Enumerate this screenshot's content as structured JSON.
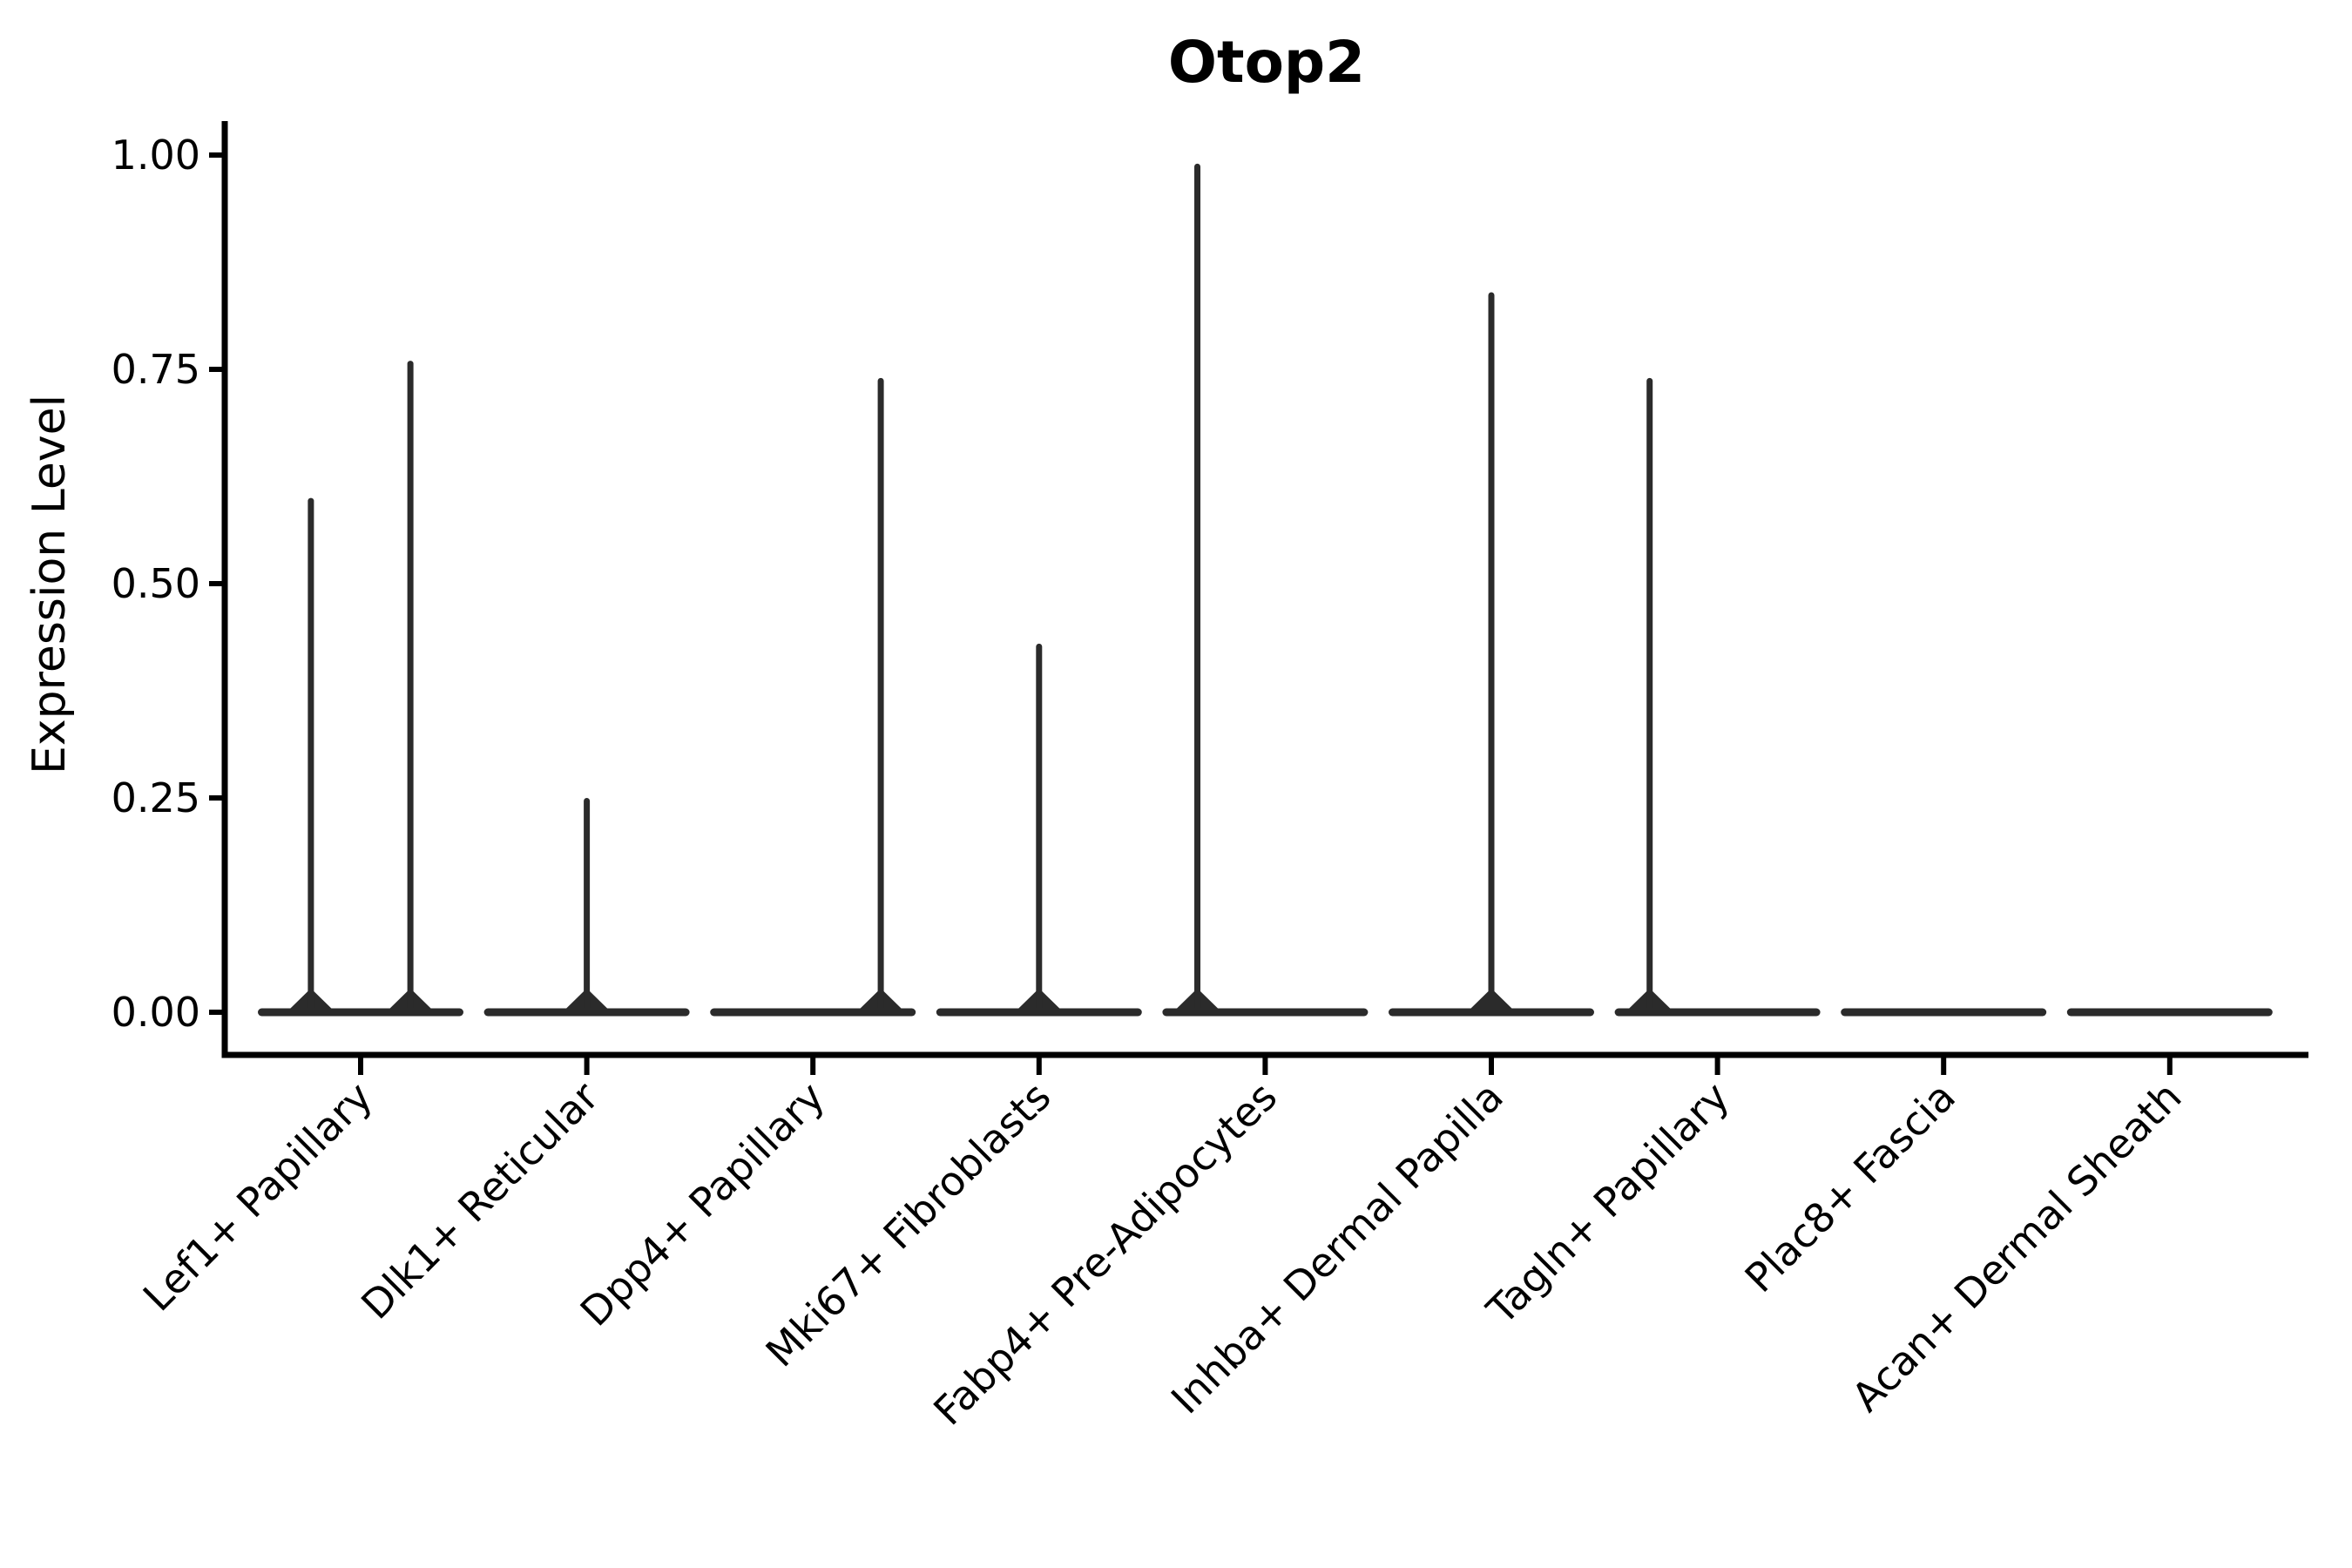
{
  "title": "Otop2",
  "axes": {
    "ylabel": "Expression Level",
    "xlabel": ""
  },
  "chart_data": {
    "type": "violin",
    "title": "Otop2",
    "xlabel": "",
    "ylabel": "Expression Level",
    "ylim": [
      -0.05,
      1.04
    ],
    "yticks": [
      0.0,
      0.25,
      0.5,
      0.75,
      1.0
    ],
    "ytick_labels": [
      "0.00",
      "0.25",
      "0.50",
      "0.75",
      "1.00"
    ],
    "grid": false,
    "legend_position": "none",
    "violin_color": "#2b2b2b",
    "axis_color": "#000000",
    "categories": [
      "Lef1+ Papillary",
      "Dlk1+ Reticular",
      "Dpp4+ Papillary",
      "Mki67+ Fibroblasts",
      "Fabp4+ Pre-Adipocytes",
      "Inhba+ Dermal Papilla",
      "Tagln+ Papillary",
      "Plac8+ Fascia",
      "Acan+ Dermal Sheath"
    ],
    "x_tick_label_rotation_deg": 45,
    "violins": [
      {
        "category": "Lef1+ Papillary",
        "baseline_value": 0.0,
        "spikes": [
          {
            "max_value": 0.6,
            "offset_frac": -0.22
          },
          {
            "max_value": 0.76,
            "offset_frac": 0.22
          }
        ]
      },
      {
        "category": "Dlk1+ Reticular",
        "baseline_value": 0.0,
        "spikes": [
          {
            "max_value": 0.25,
            "offset_frac": 0.0
          }
        ]
      },
      {
        "category": "Dpp4+ Papillary",
        "baseline_value": 0.0,
        "spikes": [
          {
            "max_value": 0.74,
            "offset_frac": 0.3
          }
        ]
      },
      {
        "category": "Mki67+ Fibroblasts",
        "baseline_value": 0.0,
        "spikes": [
          {
            "max_value": 0.43,
            "offset_frac": 0.0
          }
        ]
      },
      {
        "category": "Fabp4+ Pre-Adipocytes",
        "baseline_value": 0.0,
        "spikes": [
          {
            "max_value": 0.99,
            "offset_frac": -0.3
          }
        ]
      },
      {
        "category": "Inhba+ Dermal Papilla",
        "baseline_value": 0.0,
        "spikes": [
          {
            "max_value": 0.84,
            "offset_frac": 0.0
          }
        ]
      },
      {
        "category": "Tagln+ Papillary",
        "baseline_value": 0.0,
        "spikes": [
          {
            "max_value": 0.74,
            "offset_frac": -0.3
          }
        ]
      },
      {
        "category": "Plac8+ Fascia",
        "baseline_value": 0.0,
        "spikes": []
      },
      {
        "category": "Acan+ Dermal Sheath",
        "baseline_value": 0.0,
        "spikes": []
      }
    ]
  }
}
